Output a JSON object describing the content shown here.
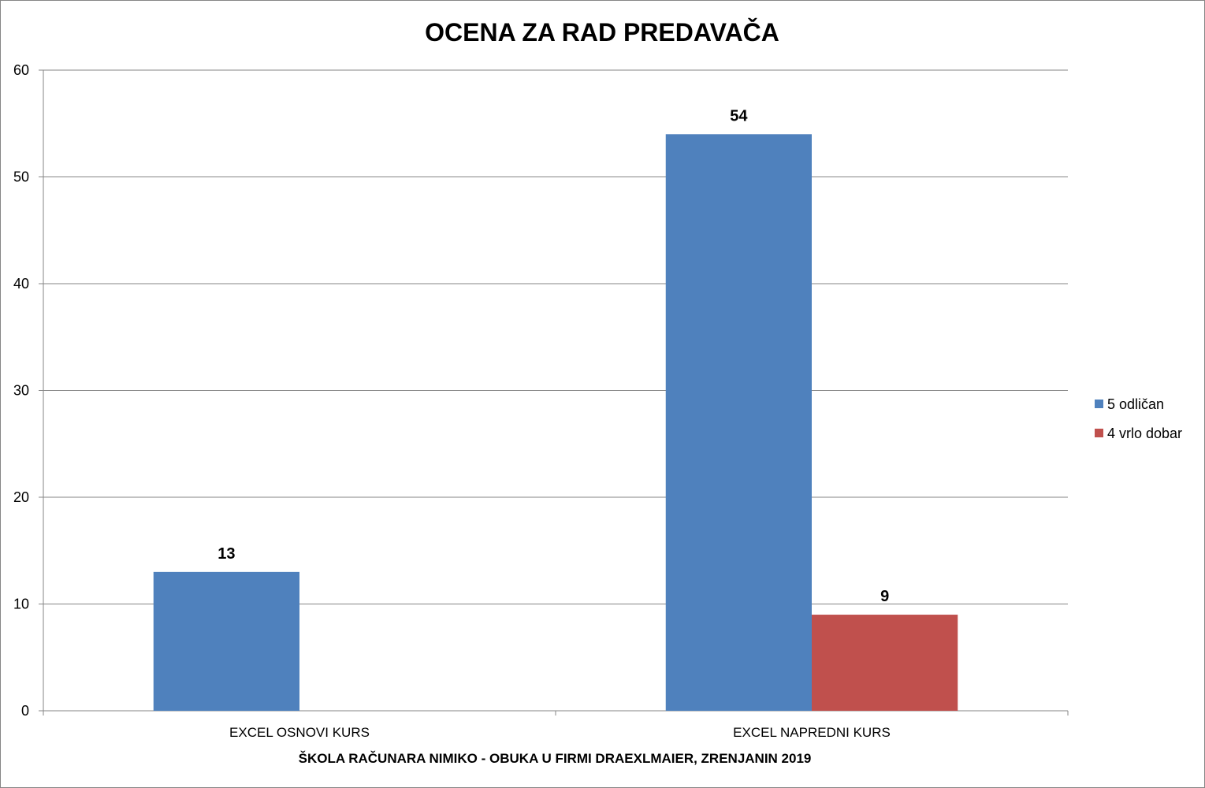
{
  "chart_data": {
    "type": "bar",
    "title": "OCENA ZA RAD PREDAVAČA",
    "xlabel": "ŠKOLA RAČUNARA NIMIKO - OBUKA U FIRMI DRAEXLMAIER, ZRENJANIN 2019",
    "ylabel": "",
    "categories": [
      "EXCEL OSNOVI KURS",
      "EXCEL NAPREDNI KURS"
    ],
    "series": [
      {
        "name": "5 odličan",
        "values": [
          13,
          54
        ],
        "color": "#4F81BD"
      },
      {
        "name": "4 vrlo dobar",
        "values": [
          null,
          9
        ],
        "color": "#C0504D"
      }
    ],
    "ylim": [
      0,
      60
    ],
    "yticks": [
      0,
      10,
      20,
      30,
      40,
      50,
      60
    ],
    "grid": true,
    "legend_position": "right",
    "data_labels": true
  }
}
